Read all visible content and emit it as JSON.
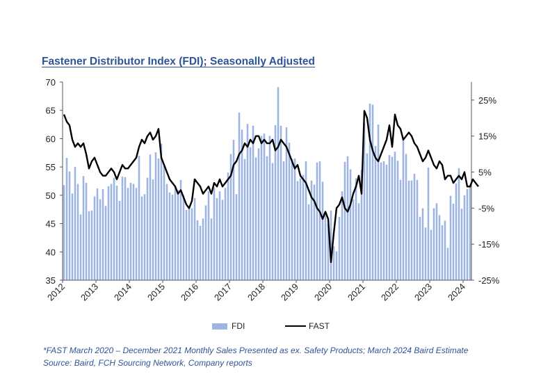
{
  "chart_data": {
    "type": "bar+line",
    "title": "Fastener Distributor Index (FDI); Seasonally Adjusted",
    "left_axis": {
      "min": 35,
      "max": 70,
      "ticks": [
        "35",
        "40",
        "45",
        "50",
        "55",
        "60",
        "65",
        "70"
      ]
    },
    "right_axis": {
      "min": -25,
      "max": 30,
      "ticks": [
        "-25%",
        "-15%",
        "-5%",
        "5%",
        "15%",
        "25%"
      ],
      "tick_values": [
        -25,
        -15,
        -5,
        5,
        15,
        25
      ]
    },
    "x_labels": [
      "2012",
      "2013",
      "2014",
      "2015",
      "2016",
      "2017",
      "2018",
      "2019",
      "2020",
      "2021",
      "2022",
      "2023",
      "2024"
    ],
    "start": "2012-01",
    "series": [
      {
        "name": "FDI",
        "kind": "bar",
        "color": "#9DB5E3",
        "values": [
          51.8,
          56.6,
          54.2,
          50.3,
          55.0,
          52.0,
          46.6,
          53.4,
          52.2,
          47.2,
          47.3,
          49.8,
          51.2,
          49.3,
          51.1,
          48.1,
          51.6,
          52.0,
          53.1,
          51.7,
          49.0,
          53.3,
          53.2,
          51.3,
          52.2,
          52.0,
          51.3,
          57.0,
          49.8,
          50.2,
          53.1,
          57.2,
          52.8,
          57.6,
          56.5,
          59.1,
          55.5,
          52.0,
          50.5,
          50.1,
          51.7,
          50.9,
          52.7,
          50.0,
          47.4,
          48.1,
          47.7,
          49.5,
          45.6,
          44.6,
          45.9,
          48.2,
          50.7,
          45.9,
          51.4,
          49.5,
          50.7,
          49.2,
          51.3,
          54.0,
          57.3,
          59.8,
          50.2,
          64.6,
          61.6,
          56.4,
          62.6,
          58.5,
          62.3,
          56.7,
          58.3,
          60.5,
          60.9,
          56.9,
          60.5,
          55.7,
          62.4,
          69.1,
          62.3,
          56.0,
          62.0,
          59.3,
          56.4,
          56.5,
          52.5,
          53.0,
          53.6,
          56.0,
          48.4,
          52.6,
          51.9,
          55.8,
          56.0,
          52.4,
          46.6,
          44.9,
          47.3,
          41.0,
          40.1,
          46.2,
          50.7,
          55.9,
          56.9,
          54.6,
          49.3,
          53.0,
          48.6,
          54.5,
          62.7,
          57.4,
          66.2,
          66.0,
          58.7,
          62.5,
          55.8,
          56.0,
          55.4,
          57.1,
          56.8,
          57.7,
          56.1,
          52.7,
          60.1,
          57.3,
          52.6,
          52.6,
          53.8,
          52.7,
          46.2,
          47.7,
          44.3,
          54.9,
          43.9,
          47.7,
          48.6,
          46.5,
          44.7,
          45.5,
          40.7,
          49.9,
          48.5,
          52.1,
          54.8,
          47.6,
          50.0,
          51.1,
          51.6
        ]
      },
      {
        "name": "FAST",
        "kind": "line",
        "color": "#000000",
        "values": [
          21,
          19,
          18,
          14,
          12,
          13,
          12,
          13,
          10,
          6,
          8,
          9,
          7,
          5,
          4,
          4,
          5,
          6,
          5,
          3,
          5,
          7,
          6,
          6,
          7,
          8,
          9,
          12,
          14,
          13,
          15,
          16,
          14,
          15,
          17,
          9,
          7,
          5,
          3,
          2,
          1,
          -1,
          0,
          -2,
          -4,
          -5,
          -3,
          3,
          2,
          1,
          -1,
          0,
          1,
          -1,
          2,
          1,
          3,
          1,
          2,
          3,
          4,
          7,
          8,
          10,
          11,
          13,
          12,
          14,
          13,
          15,
          15,
          13,
          14,
          13,
          13,
          14,
          11,
          12,
          14,
          13,
          12,
          10,
          8,
          6,
          7,
          4,
          3,
          2,
          0,
          -2,
          -3,
          -5,
          -6,
          -8,
          -6,
          -8,
          -20,
          -12,
          -5,
          -4,
          -2,
          -5,
          -6,
          -4,
          -1,
          1,
          4,
          -1,
          22,
          20,
          14,
          11,
          9,
          8,
          10,
          12,
          14,
          18,
          12,
          21,
          18,
          17,
          14,
          15,
          16,
          15,
          13,
          12,
          10,
          8,
          9,
          11,
          9,
          7,
          6,
          8,
          7,
          3,
          4,
          4,
          2,
          3,
          4,
          3,
          5,
          1,
          1,
          3,
          2,
          1
        ]
      }
    ],
    "legend": [
      "FDI",
      "FAST"
    ],
    "footnotes": [
      "*FAST March 2020 – December 2021 Monthly Sales Presented as ex. Safety Products; March 2024 Baird Estimate",
      "Source: Baird, FCH Sourcing Network, Company reports"
    ]
  }
}
